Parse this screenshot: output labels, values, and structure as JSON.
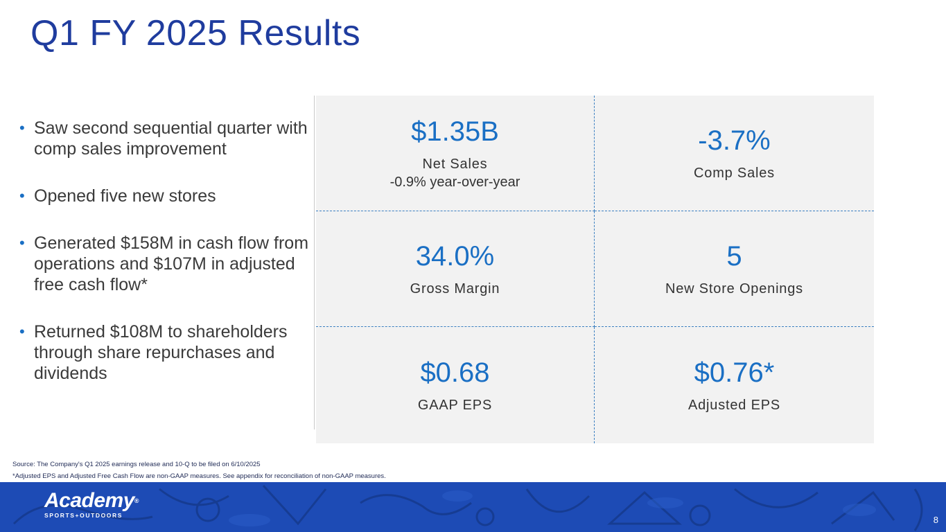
{
  "title": "Q1 FY 2025 Results",
  "bullets": [
    "Saw second sequential quarter with comp sales improvement",
    "Opened five new stores",
    "Generated $158M in cash flow from operations and $107M in adjusted free cash flow*",
    "Returned $108M to shareholders through share repurchases and dividends"
  ],
  "metrics": {
    "net_sales": {
      "value": "$1.35B",
      "label": "Net Sales",
      "sublabel": "-0.9% year-over-year"
    },
    "comp_sales": {
      "value": "-3.7%",
      "label": "Comp Sales"
    },
    "gross_margin": {
      "value": "34.0%",
      "label": "Gross Margin"
    },
    "new_stores": {
      "value": "5",
      "label": "New Store Openings"
    },
    "gaap_eps": {
      "value": "$0.68",
      "label": "GAAP EPS"
    },
    "adjusted_eps": {
      "value": "$0.76*",
      "label": "Adjusted EPS"
    }
  },
  "footnotes": {
    "source": "Source: The Company's Q1 2025 earnings release and 10-Q to be filed on 6/10/2025",
    "non_gaap": "*Adjusted EPS and Adjusted Free Cash Flow are non-GAAP measures. See appendix for reconciliation of non-GAAP measures."
  },
  "footer": {
    "logo_word": "Academy",
    "logo_reg": "®",
    "logo_sub": "SPORTS+OUTDOORS",
    "page_number": "8"
  },
  "colors": {
    "title": "#1f3c9e",
    "accent": "#1a6fc4",
    "footer_bg": "#1d4bb5",
    "panel_bg": "#f2f2f2"
  }
}
